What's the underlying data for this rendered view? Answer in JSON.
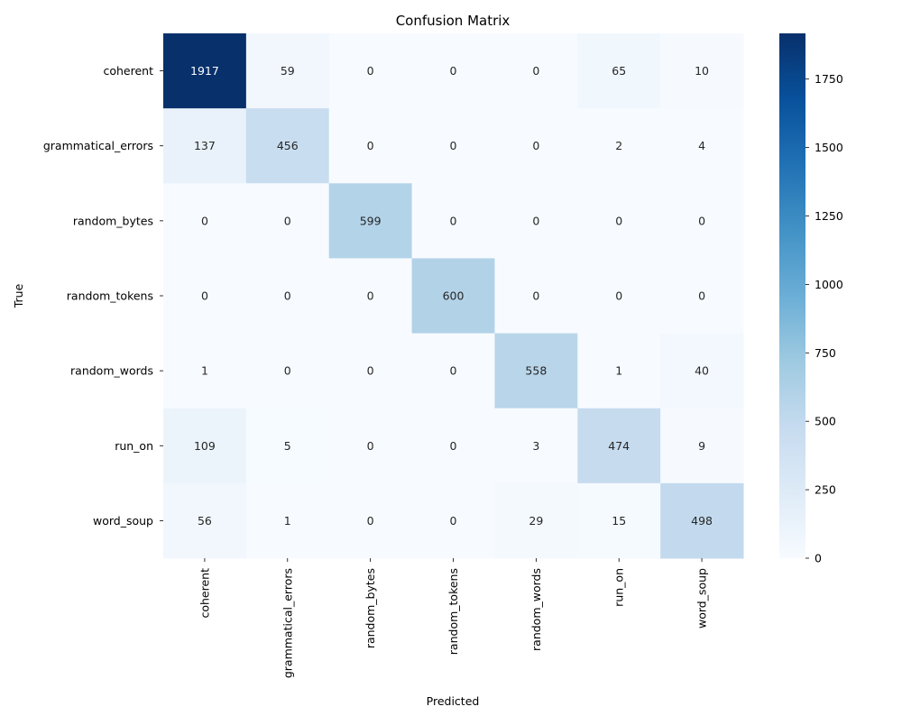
{
  "chart_data": {
    "type": "heatmap",
    "title": "Confusion Matrix",
    "xlabel": "Predicted",
    "ylabel": "True",
    "x_categories": [
      "coherent",
      "grammatical_errors",
      "random_bytes",
      "random_tokens",
      "random_words",
      "run_on",
      "word_soup"
    ],
    "y_categories": [
      "coherent",
      "grammatical_errors",
      "random_bytes",
      "random_tokens",
      "random_words",
      "run_on",
      "word_soup"
    ],
    "values": [
      [
        1917,
        59,
        0,
        0,
        0,
        65,
        10
      ],
      [
        137,
        456,
        0,
        0,
        0,
        2,
        4
      ],
      [
        0,
        0,
        599,
        0,
        0,
        0,
        0
      ],
      [
        0,
        0,
        0,
        600,
        0,
        0,
        0
      ],
      [
        1,
        0,
        0,
        0,
        558,
        1,
        40
      ],
      [
        109,
        5,
        0,
        0,
        3,
        474,
        9
      ],
      [
        56,
        1,
        0,
        0,
        29,
        15,
        498
      ]
    ],
    "colormap": "Blues",
    "colorbar": {
      "range": [
        0,
        1917
      ],
      "ticks": [
        0,
        250,
        500,
        750,
        1000,
        1250,
        1500,
        1750
      ],
      "tick_labels": [
        "0",
        "250",
        "500",
        "750",
        "1000",
        "1250",
        "1500",
        "1750"
      ]
    },
    "annotations": true,
    "grid": false
  }
}
